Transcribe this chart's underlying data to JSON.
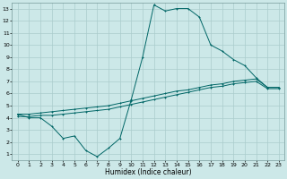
{
  "xlabel": "Humidex (Indice chaleur)",
  "xlim": [
    -0.5,
    23.5
  ],
  "ylim": [
    0.5,
    13.5
  ],
  "xticks": [
    0,
    1,
    2,
    3,
    4,
    5,
    6,
    7,
    8,
    9,
    10,
    11,
    12,
    13,
    14,
    15,
    16,
    17,
    18,
    19,
    20,
    21,
    22,
    23
  ],
  "yticks": [
    1,
    2,
    3,
    4,
    5,
    6,
    7,
    8,
    9,
    10,
    11,
    12,
    13
  ],
  "bg_color": "#cce8e8",
  "grid_color": "#aacccc",
  "line_color": "#006666",
  "line1_x": [
    0,
    1,
    2,
    3,
    4,
    5,
    6,
    7,
    8,
    9,
    10,
    11,
    12,
    13,
    14,
    15,
    16,
    17,
    18,
    19,
    20,
    21,
    22,
    23
  ],
  "line1_y": [
    4.3,
    4.0,
    4.0,
    3.3,
    2.3,
    2.5,
    1.3,
    0.8,
    1.5,
    2.3,
    5.5,
    9.0,
    13.3,
    12.8,
    13.0,
    13.0,
    12.3,
    10.0,
    9.5,
    8.8,
    8.3,
    7.3,
    6.5,
    6.5
  ],
  "line2_x": [
    0,
    1,
    2,
    3,
    4,
    5,
    6,
    7,
    8,
    9,
    10,
    11,
    12,
    13,
    14,
    15,
    16,
    17,
    18,
    19,
    20,
    21,
    22,
    23
  ],
  "line2_y": [
    4.3,
    4.3,
    4.4,
    4.5,
    4.6,
    4.7,
    4.8,
    4.9,
    5.0,
    5.2,
    5.4,
    5.6,
    5.8,
    6.0,
    6.2,
    6.3,
    6.5,
    6.7,
    6.8,
    7.0,
    7.1,
    7.2,
    6.5,
    6.5
  ],
  "line3_x": [
    0,
    1,
    2,
    3,
    4,
    5,
    6,
    7,
    8,
    9,
    10,
    11,
    12,
    13,
    14,
    15,
    16,
    17,
    18,
    19,
    20,
    21,
    22,
    23
  ],
  "line3_y": [
    4.1,
    4.1,
    4.2,
    4.2,
    4.3,
    4.4,
    4.5,
    4.6,
    4.7,
    4.9,
    5.1,
    5.3,
    5.5,
    5.7,
    5.9,
    6.1,
    6.3,
    6.5,
    6.6,
    6.8,
    6.9,
    7.0,
    6.4,
    6.4
  ]
}
